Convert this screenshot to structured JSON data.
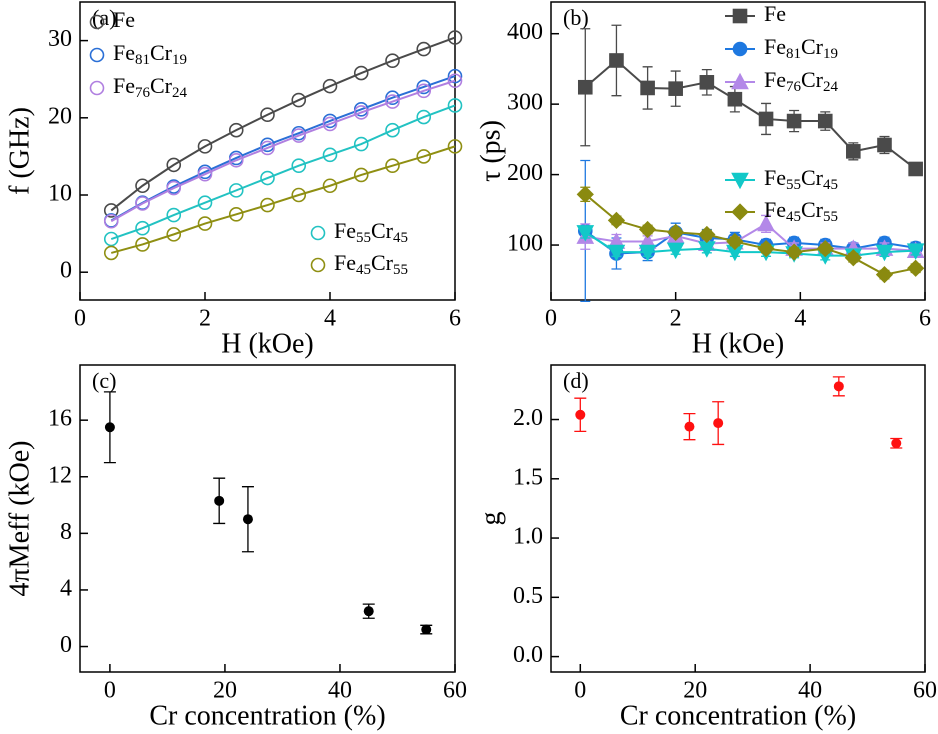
{
  "chart_data": [
    {
      "type": "line",
      "panel_label": "(a)",
      "x_label": "H (kOe)",
      "y_label": "f (GHz)",
      "xlim": [
        0,
        6
      ],
      "ylim": [
        -3.6,
        35
      ],
      "xticks": [
        0,
        2,
        4,
        6
      ],
      "yticks": [
        0,
        10,
        20,
        30
      ],
      "marker_fill": "none",
      "x": [
        0.5,
        1,
        1.5,
        2,
        2.5,
        3,
        3.5,
        4,
        4.5,
        5,
        5.5,
        6
      ],
      "series": [
        {
          "name": "Fe",
          "color": "#4a4a4a",
          "marker": "circle",
          "values": [
            8.0,
            11.2,
            13.9,
            16.3,
            18.4,
            20.4,
            22.3,
            24.1,
            25.8,
            27.4,
            28.9,
            30.4
          ]
        },
        {
          "name": "Fe81Cr19",
          "color": "#2a6fd6",
          "marker": "circle",
          "values": [
            6.7,
            9.0,
            11.1,
            13.0,
            14.8,
            16.5,
            18.0,
            19.6,
            21.1,
            22.6,
            24.0,
            25.4
          ]
        },
        {
          "name": "Fe76Cr24",
          "color": "#b07fe0",
          "marker": "circle",
          "values": [
            6.6,
            8.9,
            10.9,
            12.7,
            14.5,
            16.1,
            17.7,
            19.2,
            20.7,
            22.1,
            23.5,
            24.8
          ]
        },
        {
          "name": "Fe55Cr45",
          "color": "#22c2c2",
          "marker": "circle",
          "values": [
            4.3,
            5.7,
            7.4,
            9.0,
            10.6,
            12.2,
            13.8,
            15.2,
            16.6,
            18.4,
            20.1,
            21.6
          ]
        },
        {
          "name": "Fe45Cr55",
          "color": "#8f8f12",
          "marker": "circle",
          "values": [
            2.5,
            3.6,
            4.9,
            6.3,
            7.5,
            8.7,
            10.0,
            11.2,
            12.6,
            13.8,
            15.0,
            16.3
          ]
        }
      ]
    },
    {
      "type": "line",
      "panel_label": "(b)",
      "x_label": "H (kOe)",
      "y_label": "τ (ps)",
      "xlim": [
        0,
        6
      ],
      "ylim": [
        22,
        445
      ],
      "xticks": [
        0,
        2,
        4,
        6
      ],
      "yticks": [
        100,
        200,
        300,
        400
      ],
      "marker_fill": "solid",
      "x": [
        0.55,
        1.05,
        1.55,
        2.0,
        2.5,
        2.95,
        3.45,
        3.9,
        4.4,
        4.85,
        5.35,
        5.85
      ],
      "series": [
        {
          "name": "Fe",
          "color": "#4a4a4a",
          "marker": "square",
          "values": [
            324,
            362,
            323,
            322,
            331,
            307,
            279,
            276,
            276,
            233,
            242,
            208
          ],
          "errors": [
            83,
            50,
            30,
            25,
            18,
            18,
            22,
            15,
            13,
            12,
            12,
            8
          ]
        },
        {
          "name": "Fe81Cr19",
          "color": "#1e78e0",
          "marker": "circle",
          "values": [
            120,
            88,
            90,
            118,
            110,
            108,
            100,
            103,
            100,
            95,
            103,
            96
          ],
          "errors": [
            100,
            22,
            12,
            13,
            12,
            10,
            8,
            8,
            8,
            8,
            8,
            8
          ]
        },
        {
          "name": "Fe76Cr24",
          "color": "#b388e8",
          "marker": "triangle",
          "values": [
            112,
            105,
            105,
            113,
            102,
            104,
            130,
            95,
            95,
            95,
            95,
            92
          ],
          "errors": [
            18,
            10,
            8,
            8,
            8,
            8,
            12,
            8,
            8,
            8,
            8,
            8
          ]
        },
        {
          "name": "Fe55Cr45",
          "color": "#12c8c8",
          "marker": "triangle-down",
          "values": [
            118,
            90,
            90,
            93,
            95,
            90,
            90,
            88,
            85,
            85,
            90,
            92
          ],
          "errors": [
            8,
            6,
            6,
            6,
            6,
            6,
            6,
            6,
            6,
            6,
            6,
            6
          ]
        },
        {
          "name": "Fe45Cr55",
          "color": "#8a8a10",
          "marker": "diamond",
          "values": [
            172,
            135,
            122,
            118,
            115,
            105,
            95,
            90,
            95,
            82,
            58,
            67
          ],
          "errors": [
            10,
            6,
            6,
            6,
            6,
            6,
            6,
            6,
            6,
            6,
            6,
            6
          ]
        }
      ]
    },
    {
      "type": "scatter",
      "panel_label": "(c)",
      "x_label": "Cr concentration (%)",
      "y_label": "4πMeff (kOe)",
      "xlim": [
        -5.2,
        60
      ],
      "ylim": [
        -1.8,
        19.9
      ],
      "xticks": [
        0,
        20,
        40,
        60
      ],
      "yticks": [
        0,
        4,
        8,
        12,
        16
      ],
      "color": "#000000",
      "x": [
        0,
        19,
        24,
        45,
        55
      ],
      "values": [
        15.5,
        10.3,
        9.0,
        2.5,
        1.2
      ],
      "errors": [
        2.5,
        1.6,
        2.3,
        0.5,
        0.3
      ]
    },
    {
      "type": "scatter",
      "panel_label": "(d)",
      "x_label": "Cr concentration (%)",
      "y_label": "g",
      "xlim": [
        -5.1,
        60
      ],
      "ylim": [
        -0.13,
        2.46
      ],
      "xticks": [
        0,
        20,
        40,
        60
      ],
      "yticks": [
        {
          "value": 0,
          "label": "0.0"
        },
        {
          "value": 0.5,
          "label": "0.5"
        },
        {
          "value": 1,
          "label": "1.0"
        },
        {
          "value": 1.5,
          "label": "1.5"
        },
        {
          "value": 2,
          "label": "2.0"
        }
      ],
      "color": "#ff1010",
      "x": [
        0,
        19,
        24,
        45,
        55
      ],
      "values": [
        2.04,
        1.94,
        1.97,
        2.28,
        1.8
      ],
      "errors": [
        0.14,
        0.11,
        0.18,
        0.08,
        0.04
      ]
    }
  ]
}
